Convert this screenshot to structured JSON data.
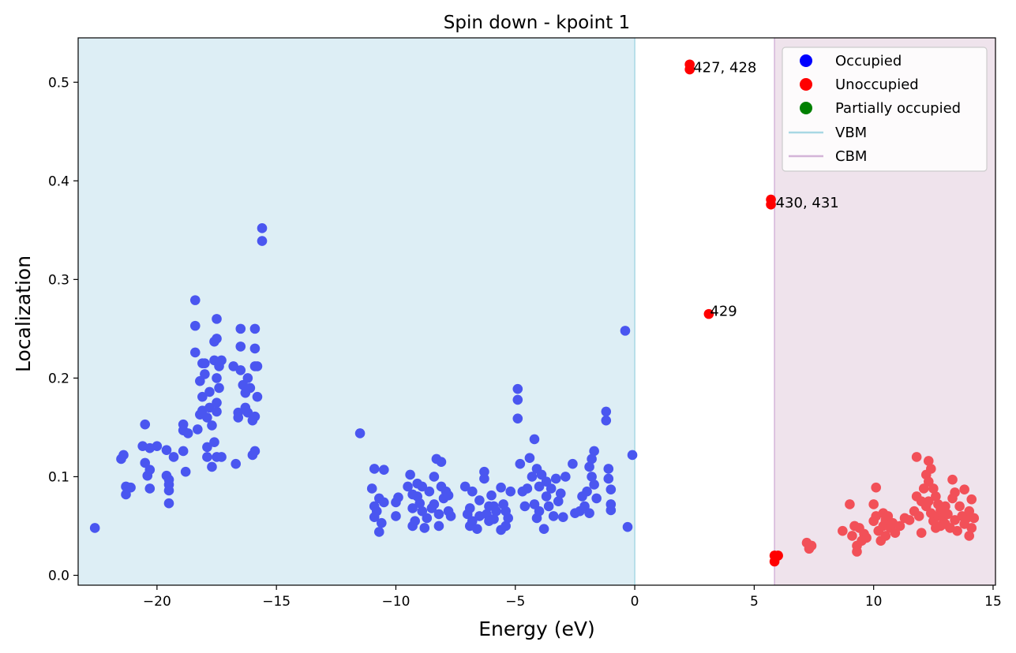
{
  "chart_data": {
    "type": "scatter",
    "title": "Spin down - kpoint 1",
    "xlabel": "Energy (eV)",
    "ylabel": "Localization",
    "xlim": [
      -23.3,
      15.1
    ],
    "ylim": [
      -0.01,
      0.545
    ],
    "xticks": [
      -20,
      -15,
      -10,
      -5,
      0,
      5,
      10,
      15
    ],
    "yticks": [
      0.0,
      0.1,
      0.2,
      0.3,
      0.4,
      0.5
    ],
    "xtick_labels": [
      "−20",
      "−15",
      "−10",
      "−5",
      "0",
      "5",
      "10",
      "15"
    ],
    "ytick_labels": [
      "0.0",
      "0.1",
      "0.2",
      "0.3",
      "0.4",
      "0.5"
    ],
    "grid": false,
    "legend_position": "top-right",
    "colors": {
      "occupied": "#4a56f0",
      "unoccupied_core": "#ff0000",
      "unoccupied_bulk": "#f25058",
      "vbm_shade": "#ddeef5",
      "vbm_line": "#a8d8e4",
      "cbm_shade": "#efe3ec",
      "cbm_line": "#d4b4d8"
    },
    "regions": {
      "vbm": 0.0,
      "cbm": 5.85
    },
    "legend": [
      {
        "label": "Occupied",
        "kind": "marker",
        "color": "#0000ff"
      },
      {
        "label": "Unoccupied",
        "kind": "marker",
        "color": "#ff0000"
      },
      {
        "label": "Partially occupied",
        "kind": "marker",
        "color": "#008000"
      },
      {
        "label": "VBM",
        "kind": "line",
        "color": "#a8d8e4"
      },
      {
        "label": "CBM",
        "kind": "line",
        "color": "#d4b4d8"
      }
    ],
    "annotations": [
      {
        "text": "427, 428",
        "x": 2.45,
        "y": 0.515
      },
      {
        "text": "430, 431",
        "x": 5.9,
        "y": 0.378
      },
      {
        "text": "429",
        "x": 3.15,
        "y": 0.268
      }
    ],
    "series": [
      {
        "name": "Occupied",
        "color": "#4a56f0",
        "points": [
          [
            -22.6,
            0.048
          ],
          [
            -21.5,
            0.118
          ],
          [
            -21.4,
            0.122
          ],
          [
            -21.3,
            0.09
          ],
          [
            -21.3,
            0.082
          ],
          [
            -21.1,
            0.089
          ],
          [
            -20.6,
            0.131
          ],
          [
            -20.5,
            0.153
          ],
          [
            -20.5,
            0.114
          ],
          [
            -20.4,
            0.101
          ],
          [
            -20.3,
            0.107
          ],
          [
            -20.3,
            0.088
          ],
          [
            -20.3,
            0.129
          ],
          [
            -20.0,
            0.131
          ],
          [
            -19.6,
            0.127
          ],
          [
            -19.6,
            0.101
          ],
          [
            -19.5,
            0.097
          ],
          [
            -19.5,
            0.092
          ],
          [
            -19.5,
            0.086
          ],
          [
            -19.5,
            0.073
          ],
          [
            -19.3,
            0.12
          ],
          [
            -18.9,
            0.126
          ],
          [
            -18.9,
            0.153
          ],
          [
            -18.9,
            0.147
          ],
          [
            -18.8,
            0.105
          ],
          [
            -18.7,
            0.144
          ],
          [
            -18.4,
            0.279
          ],
          [
            -18.4,
            0.253
          ],
          [
            -18.4,
            0.226
          ],
          [
            -18.3,
            0.148
          ],
          [
            -18.2,
            0.163
          ],
          [
            -18.2,
            0.197
          ],
          [
            -18.1,
            0.215
          ],
          [
            -18.1,
            0.181
          ],
          [
            -18.1,
            0.167
          ],
          [
            -18.0,
            0.215
          ],
          [
            -18.0,
            0.204
          ],
          [
            -17.9,
            0.13
          ],
          [
            -17.9,
            0.12
          ],
          [
            -17.9,
            0.16
          ],
          [
            -17.8,
            0.186
          ],
          [
            -17.8,
            0.17
          ],
          [
            -17.7,
            0.152
          ],
          [
            -17.7,
            0.11
          ],
          [
            -17.6,
            0.237
          ],
          [
            -17.6,
            0.218
          ],
          [
            -17.6,
            0.135
          ],
          [
            -17.5,
            0.26
          ],
          [
            -17.5,
            0.24
          ],
          [
            -17.5,
            0.2
          ],
          [
            -17.5,
            0.175
          ],
          [
            -17.5,
            0.166
          ],
          [
            -17.4,
            0.212
          ],
          [
            -17.4,
            0.19
          ],
          [
            -17.3,
            0.218
          ],
          [
            -17.3,
            0.12
          ],
          [
            -17.5,
            0.12
          ],
          [
            -16.8,
            0.212
          ],
          [
            -16.7,
            0.113
          ],
          [
            -16.6,
            0.165
          ],
          [
            -16.6,
            0.16
          ],
          [
            -16.5,
            0.25
          ],
          [
            -16.5,
            0.232
          ],
          [
            -16.5,
            0.208
          ],
          [
            -16.4,
            0.193
          ],
          [
            -16.3,
            0.17
          ],
          [
            -16.3,
            0.185
          ],
          [
            -16.2,
            0.2
          ],
          [
            -16.2,
            0.165
          ],
          [
            -16.1,
            0.19
          ],
          [
            -16.0,
            0.122
          ],
          [
            -16.0,
            0.157
          ],
          [
            -15.9,
            0.25
          ],
          [
            -15.9,
            0.23
          ],
          [
            -15.9,
            0.212
          ],
          [
            -15.9,
            0.161
          ],
          [
            -15.9,
            0.126
          ],
          [
            -15.8,
            0.212
          ],
          [
            -15.8,
            0.181
          ],
          [
            -15.6,
            0.352
          ],
          [
            -15.6,
            0.339
          ],
          [
            -11.5,
            0.144
          ],
          [
            -11.0,
            0.088
          ],
          [
            -10.9,
            0.108
          ],
          [
            -10.9,
            0.07
          ],
          [
            -10.9,
            0.059
          ],
          [
            -10.8,
            0.065
          ],
          [
            -10.7,
            0.078
          ],
          [
            -10.7,
            0.044
          ],
          [
            -10.6,
            0.053
          ],
          [
            -10.5,
            0.107
          ],
          [
            -10.5,
            0.074
          ],
          [
            -10.0,
            0.06
          ],
          [
            -10.0,
            0.074
          ],
          [
            -9.9,
            0.079
          ],
          [
            -9.5,
            0.09
          ],
          [
            -9.4,
            0.102
          ],
          [
            -9.3,
            0.068
          ],
          [
            -9.3,
            0.082
          ],
          [
            -9.3,
            0.05
          ],
          [
            -9.2,
            0.055
          ],
          [
            -9.1,
            0.093
          ],
          [
            -9.1,
            0.08
          ],
          [
            -9.0,
            0.073
          ],
          [
            -8.9,
            0.065
          ],
          [
            -8.9,
            0.09
          ],
          [
            -8.8,
            0.048
          ],
          [
            -8.7,
            0.058
          ],
          [
            -8.6,
            0.085
          ],
          [
            -8.5,
            0.068
          ],
          [
            -8.4,
            0.072
          ],
          [
            -8.4,
            0.1
          ],
          [
            -8.3,
            0.118
          ],
          [
            -8.2,
            0.05
          ],
          [
            -8.2,
            0.062
          ],
          [
            -8.1,
            0.09
          ],
          [
            -8.1,
            0.115
          ],
          [
            -8.0,
            0.078
          ],
          [
            -7.9,
            0.085
          ],
          [
            -7.8,
            0.081
          ],
          [
            -7.8,
            0.065
          ],
          [
            -7.7,
            0.06
          ],
          [
            -7.1,
            0.09
          ],
          [
            -7.0,
            0.062
          ],
          [
            -6.9,
            0.068
          ],
          [
            -6.9,
            0.05
          ],
          [
            -6.8,
            0.055
          ],
          [
            -6.8,
            0.085
          ],
          [
            -6.6,
            0.047
          ],
          [
            -6.5,
            0.06
          ],
          [
            -6.5,
            0.076
          ],
          [
            -6.3,
            0.105
          ],
          [
            -6.3,
            0.098
          ],
          [
            -6.2,
            0.062
          ],
          [
            -6.1,
            0.07
          ],
          [
            -6.1,
            0.055
          ],
          [
            -6.0,
            0.081
          ],
          [
            -5.9,
            0.07
          ],
          [
            -5.9,
            0.057
          ],
          [
            -5.8,
            0.065
          ],
          [
            -5.6,
            0.046
          ],
          [
            -5.6,
            0.089
          ],
          [
            -5.5,
            0.072
          ],
          [
            -5.4,
            0.065
          ],
          [
            -5.4,
            0.05
          ],
          [
            -5.3,
            0.058
          ],
          [
            -5.2,
            0.085
          ],
          [
            -4.9,
            0.159
          ],
          [
            -4.9,
            0.178
          ],
          [
            -4.9,
            0.189
          ],
          [
            -4.8,
            0.113
          ],
          [
            -4.7,
            0.085
          ],
          [
            -4.6,
            0.07
          ],
          [
            -4.5,
            0.088
          ],
          [
            -4.4,
            0.119
          ],
          [
            -4.3,
            0.1
          ],
          [
            -4.2,
            0.138
          ],
          [
            -4.2,
            0.072
          ],
          [
            -4.1,
            0.108
          ],
          [
            -4.1,
            0.058
          ],
          [
            -4.0,
            0.09
          ],
          [
            -4.0,
            0.065
          ],
          [
            -3.9,
            0.102
          ],
          [
            -3.8,
            0.047
          ],
          [
            -3.7,
            0.08
          ],
          [
            -3.7,
            0.095
          ],
          [
            -3.6,
            0.07
          ],
          [
            -3.5,
            0.088
          ],
          [
            -3.4,
            0.06
          ],
          [
            -3.3,
            0.098
          ],
          [
            -3.2,
            0.075
          ],
          [
            -3.1,
            0.083
          ],
          [
            -3.0,
            0.059
          ],
          [
            -2.9,
            0.1
          ],
          [
            -2.6,
            0.113
          ],
          [
            -2.5,
            0.063
          ],
          [
            -2.3,
            0.065
          ],
          [
            -2.2,
            0.08
          ],
          [
            -2.1,
            0.07
          ],
          [
            -2.0,
            0.085
          ],
          [
            -1.9,
            0.063
          ],
          [
            -1.9,
            0.11
          ],
          [
            -1.8,
            0.118
          ],
          [
            -1.8,
            0.1
          ],
          [
            -1.7,
            0.126
          ],
          [
            -1.7,
            0.092
          ],
          [
            -1.6,
            0.078
          ],
          [
            -1.2,
            0.166
          ],
          [
            -1.2,
            0.157
          ],
          [
            -1.1,
            0.108
          ],
          [
            -1.1,
            0.098
          ],
          [
            -1.0,
            0.087
          ],
          [
            -1.0,
            0.072
          ],
          [
            -1.0,
            0.066
          ],
          [
            -0.4,
            0.248
          ],
          [
            -0.3,
            0.049
          ],
          [
            -0.1,
            0.122
          ]
        ]
      },
      {
        "name": "Unoccupied",
        "color": "#ff0000",
        "points": [
          [
            2.3,
            0.518
          ],
          [
            2.3,
            0.513
          ],
          [
            5.7,
            0.381
          ],
          [
            5.7,
            0.376
          ],
          [
            3.1,
            0.265
          ],
          [
            5.85,
            0.02
          ],
          [
            5.85,
            0.014
          ],
          [
            6.0,
            0.02
          ]
        ]
      },
      {
        "name": "Unoccupied",
        "color": "#f25058",
        "points": [
          [
            7.2,
            0.033
          ],
          [
            7.3,
            0.027
          ],
          [
            7.4,
            0.03
          ],
          [
            8.7,
            0.045
          ],
          [
            9.0,
            0.072
          ],
          [
            9.1,
            0.04
          ],
          [
            9.2,
            0.05
          ],
          [
            9.3,
            0.03
          ],
          [
            9.3,
            0.024
          ],
          [
            9.4,
            0.048
          ],
          [
            9.5,
            0.035
          ],
          [
            9.6,
            0.042
          ],
          [
            9.7,
            0.038
          ],
          [
            10.0,
            0.072
          ],
          [
            10.0,
            0.055
          ],
          [
            10.1,
            0.089
          ],
          [
            10.1,
            0.06
          ],
          [
            10.2,
            0.045
          ],
          [
            10.3,
            0.035
          ],
          [
            10.4,
            0.063
          ],
          [
            10.4,
            0.05
          ],
          [
            10.5,
            0.04
          ],
          [
            10.5,
            0.056
          ],
          [
            10.6,
            0.06
          ],
          [
            10.7,
            0.048
          ],
          [
            10.8,
            0.053
          ],
          [
            10.9,
            0.043
          ],
          [
            11.1,
            0.05
          ],
          [
            11.3,
            0.058
          ],
          [
            11.5,
            0.056
          ],
          [
            11.7,
            0.065
          ],
          [
            11.8,
            0.12
          ],
          [
            11.8,
            0.08
          ],
          [
            11.9,
            0.06
          ],
          [
            12.0,
            0.043
          ],
          [
            12.0,
            0.075
          ],
          [
            12.1,
            0.088
          ],
          [
            12.2,
            0.102
          ],
          [
            12.2,
            0.07
          ],
          [
            12.3,
            0.116
          ],
          [
            12.3,
            0.095
          ],
          [
            12.3,
            0.075
          ],
          [
            12.4,
            0.108
          ],
          [
            12.4,
            0.063
          ],
          [
            12.5,
            0.088
          ],
          [
            12.5,
            0.055
          ],
          [
            12.6,
            0.08
          ],
          [
            12.6,
            0.048
          ],
          [
            12.7,
            0.072
          ],
          [
            12.7,
            0.06
          ],
          [
            12.8,
            0.05
          ],
          [
            12.8,
            0.066
          ],
          [
            12.9,
            0.058
          ],
          [
            13.0,
            0.052
          ],
          [
            13.0,
            0.07
          ],
          [
            13.1,
            0.062
          ],
          [
            13.2,
            0.048
          ],
          [
            13.3,
            0.078
          ],
          [
            13.3,
            0.097
          ],
          [
            13.4,
            0.084
          ],
          [
            13.4,
            0.056
          ],
          [
            13.5,
            0.045
          ],
          [
            13.6,
            0.07
          ],
          [
            13.7,
            0.06
          ],
          [
            13.8,
            0.087
          ],
          [
            13.8,
            0.052
          ],
          [
            13.9,
            0.058
          ],
          [
            14.0,
            0.04
          ],
          [
            14.0,
            0.065
          ],
          [
            14.1,
            0.048
          ],
          [
            14.1,
            0.077
          ],
          [
            14.2,
            0.058
          ]
        ]
      }
    ]
  }
}
